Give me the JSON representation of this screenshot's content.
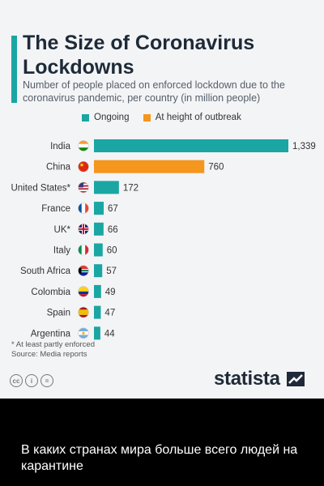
{
  "title": "The Size of Coronavirus Lockdowns",
  "subtitle": "Number of people placed on enforced lockdown due to the coronavirus pandemic, per country (in million people)",
  "legend": {
    "ongoing": "Ongoing",
    "height": "At height of outbreak"
  },
  "colors": {
    "ongoing": "#1aa6a3",
    "height": "#f5961e",
    "accent": "#1aa6a3"
  },
  "chart_data": {
    "type": "bar",
    "orientation": "horizontal",
    "categories": [
      "India",
      "China",
      "United States*",
      "France",
      "UK*",
      "Italy",
      "South Africa",
      "Colombia",
      "Spain",
      "Argentina"
    ],
    "values": [
      1339,
      760,
      172,
      67,
      66,
      60,
      57,
      49,
      47,
      44
    ],
    "value_labels": [
      "1,339",
      "760",
      "172",
      "67",
      "66",
      "60",
      "57",
      "49",
      "47",
      "44"
    ],
    "status": [
      "Ongoing",
      "At height of outbreak",
      "Ongoing",
      "Ongoing",
      "Ongoing",
      "Ongoing",
      "Ongoing",
      "Ongoing",
      "Ongoing",
      "Ongoing"
    ],
    "flag_icons": [
      "india-flag-icon",
      "china-flag-icon",
      "usa-flag-icon",
      "france-flag-icon",
      "uk-flag-icon",
      "italy-flag-icon",
      "south-africa-flag-icon",
      "colombia-flag-icon",
      "spain-flag-icon",
      "argentina-flag-icon"
    ],
    "xlim": [
      0,
      1339
    ],
    "grid": false,
    "legend_position": "top"
  },
  "footnote": "* At least partly enforced",
  "source": "Source: Media reports",
  "license_icons": [
    "cc-icon",
    "by-icon",
    "nd-icon"
  ],
  "brand": "statista",
  "caption": "В каких странах мира больше всего людей на карантине"
}
